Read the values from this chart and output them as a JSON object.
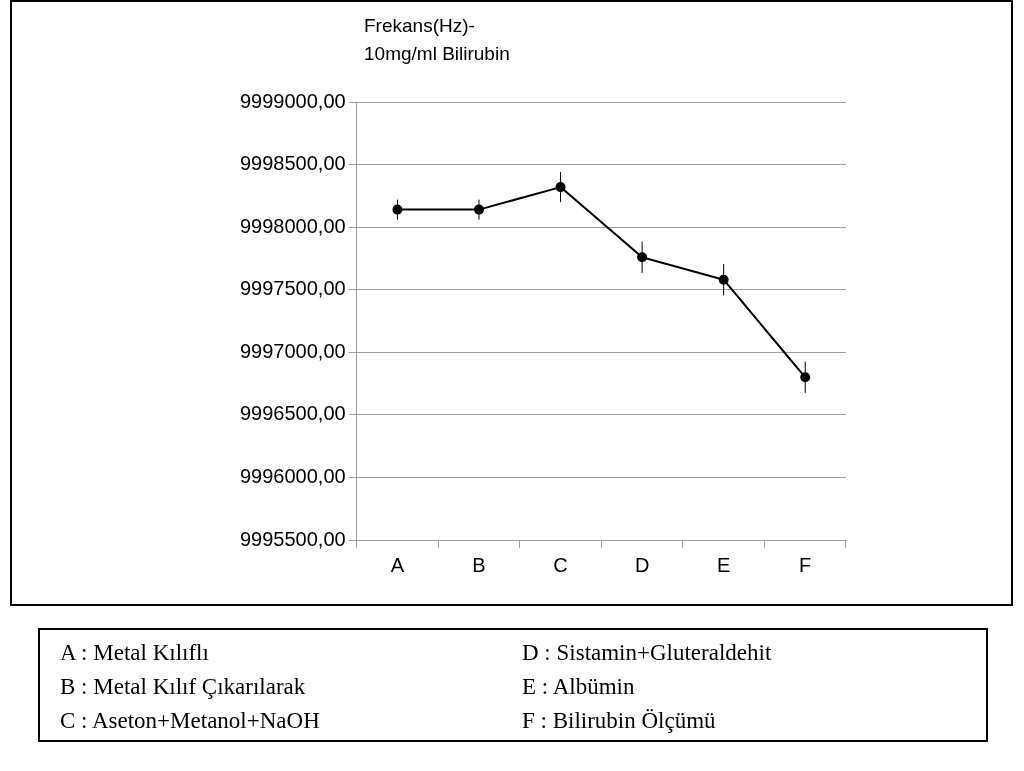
{
  "chart_data": {
    "type": "line",
    "title": "Frekans(Hz)-\n10mg/ml Bilirubin",
    "categories": [
      "A",
      "B",
      "C",
      "D",
      "E",
      "F"
    ],
    "series": [
      {
        "color": "#000000",
        "values": [
          9998140,
          9998140,
          9998320,
          9997760,
          9997580,
          9996800
        ],
        "errors": [
          80,
          80,
          120,
          125,
          125,
          125
        ]
      }
    ],
    "ylim": [
      9995500,
      9999000
    ],
    "yticks": [
      {
        "value": 9995500,
        "label": "9995500,00"
      },
      {
        "value": 9996000,
        "label": "9996000,00"
      },
      {
        "value": 9996500,
        "label": "9996500,00"
      },
      {
        "value": 9997000,
        "label": "9997000,00"
      },
      {
        "value": 9997500,
        "label": "9997500,00"
      },
      {
        "value": 9998000,
        "label": "9998000,00"
      },
      {
        "value": 9998500,
        "label": "9998500,00"
      },
      {
        "value": 9999000,
        "label": "9999000,00"
      }
    ],
    "grid": "y",
    "marker": "circle",
    "line_style": "solid",
    "legend": false,
    "annotations": [
      "A : Metal Kılıflı",
      "D : Sistamin+Gluteraldehit",
      "B : Metal Kılıf Çıkarılarak",
      "E : Albümin",
      "C : Aseton+Metanol+NaOH",
      "F : Bilirubin Ölçümü"
    ]
  }
}
